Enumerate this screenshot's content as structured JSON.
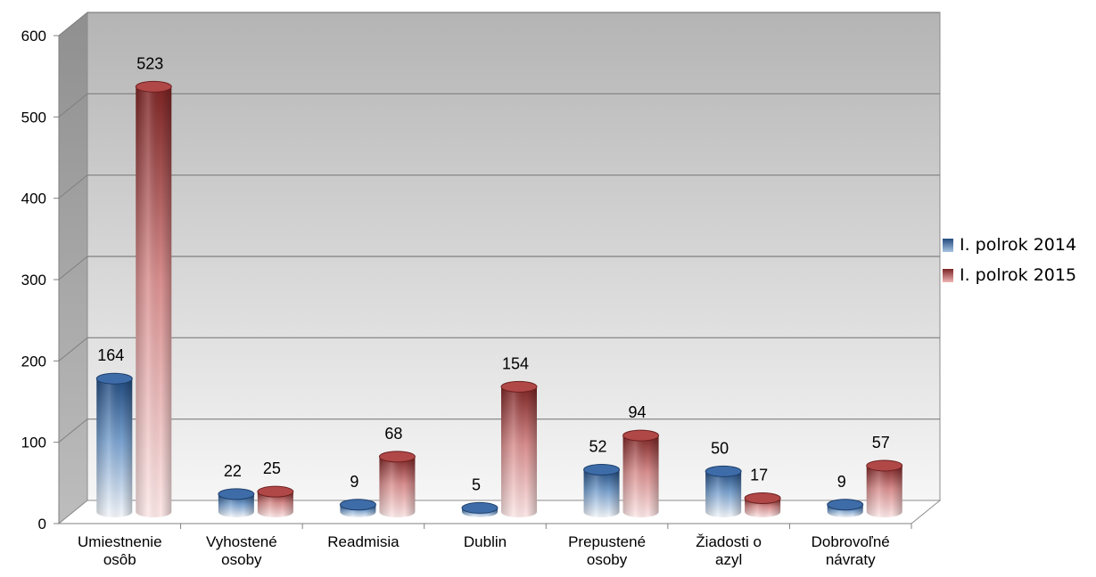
{
  "chart_data": {
    "type": "bar",
    "categories": [
      [
        "Umiestnenie",
        "osôb"
      ],
      [
        "Vyhostené",
        "osoby"
      ],
      [
        "Readmisia"
      ],
      [
        "Dublin"
      ],
      [
        "Prepustené",
        "osoby"
      ],
      [
        "Žiadosti o",
        "azyl"
      ],
      [
        "Dobrovoľné",
        "návraty"
      ]
    ],
    "series": [
      {
        "name": "I. polrok 2014",
        "values": [
          164,
          22,
          9,
          5,
          52,
          50,
          9
        ],
        "color": "#2f5f9c"
      },
      {
        "name": "I. polrok 2015",
        "values": [
          523,
          25,
          68,
          154,
          94,
          17,
          57
        ],
        "color": "#a33a3a"
      }
    ],
    "ylim": [
      0,
      600
    ],
    "yticks": [
      "0",
      "100",
      "200",
      "300",
      "400",
      "500",
      "600"
    ],
    "grid": true,
    "legend_position": "right",
    "style": "3d-cylinder"
  }
}
